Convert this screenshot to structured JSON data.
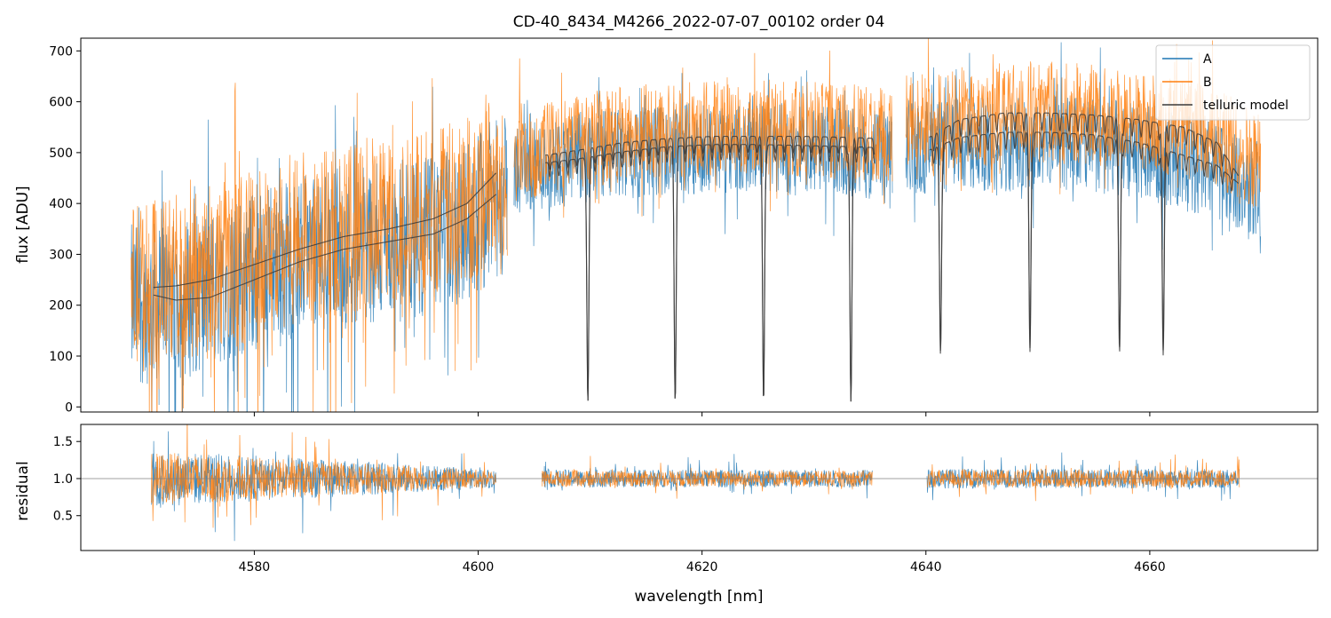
{
  "colors": {
    "series_a": "#1f77b4",
    "series_b": "#ff7f0e",
    "telluric": "#3a3a3a",
    "reference_line": "#808080",
    "axes": "#000000",
    "legend_border": "#cccccc"
  },
  "chart_data": [
    {
      "id": "flux-panel",
      "type": "line",
      "title": "CD-40_8434_M4266_2022-07-07_00102  order 04",
      "xlabel": "",
      "ylabel": "flux [ADU]",
      "xlim": [
        4564.5,
        4675
      ],
      "ylim": [
        -10,
        725
      ],
      "yticks": [
        0,
        100,
        200,
        300,
        400,
        500,
        600,
        700
      ],
      "xticks": [
        4580,
        4600,
        4620,
        4640,
        4660
      ],
      "show_xtick_labels": false,
      "grid": false,
      "legend": {
        "location": "top-right",
        "entries": [
          {
            "label": "A",
            "series": "series_a"
          },
          {
            "label": "B",
            "series": "series_b"
          },
          {
            "label": "telluric model",
            "series": "telluric"
          }
        ]
      },
      "series": [
        {
          "name": "A",
          "color_key": "series_a",
          "segments": [
            {
              "x_range": [
                4569.0,
                4602.6
              ],
              "x": [
                4569,
                4571,
                4574,
                4578,
                4582,
                4586,
                4590,
                4594,
                4598,
                4601.6
              ],
              "y": [
                200,
                205,
                215,
                250,
                285,
                305,
                320,
                330,
                350,
                410
              ],
              "noise": 160,
              "dip_depth": 200
            },
            {
              "x_range": [
                4603.2,
                4637.0
              ],
              "x": [
                4605,
                4609,
                4613,
                4617,
                4621,
                4625,
                4629,
                4633,
                4636.5
              ],
              "y": [
                470,
                490,
                500,
                505,
                510,
                510,
                505,
                500,
                495
              ],
              "noise": 90,
              "dip_depth": 60
            },
            {
              "x_range": [
                4638.2,
                4669.9
              ],
              "x": [
                4640,
                4645,
                4650,
                4655,
                4660,
                4665,
                4669.5
              ],
              "y": [
                510,
                515,
                520,
                515,
                500,
                470,
                430
              ],
              "noise": 95,
              "dip_depth": 60
            }
          ]
        },
        {
          "name": "B",
          "color_key": "series_b",
          "segments": [
            {
              "x_range": [
                4569.0,
                4602.6
              ],
              "x": [
                4569,
                4571,
                4574,
                4578,
                4582,
                4586,
                4590,
                4594,
                4598,
                4601.6
              ],
              "y": [
                230,
                240,
                255,
                285,
                320,
                345,
                360,
                370,
                395,
                450
              ],
              "noise": 170,
              "dip_depth": 210
            },
            {
              "x_range": [
                4603.2,
                4637.0
              ],
              "x": [
                4605,
                4609,
                4613,
                4617,
                4621,
                4625,
                4629,
                4633,
                4636.5
              ],
              "y": [
                500,
                525,
                535,
                545,
                545,
                550,
                545,
                540,
                535
              ],
              "noise": 95,
              "dip_depth": 60
            },
            {
              "x_range": [
                4638.2,
                4669.9
              ],
              "x": [
                4640,
                4645,
                4650,
                4655,
                4660,
                4665,
                4669.5
              ],
              "y": [
                560,
                575,
                580,
                575,
                560,
                535,
                490
              ],
              "noise": 100,
              "dip_depth": 60
            }
          ]
        },
        {
          "name": "telluric model",
          "color_key": "telluric",
          "style": "thin-line",
          "curves": [
            {
              "x": [
                4571,
                4573,
                4576,
                4580,
                4584,
                4588,
                4592,
                4596,
                4599,
                4601.6
              ],
              "y": [
                235,
                238,
                250,
                280,
                310,
                335,
                350,
                370,
                400,
                460
              ]
            },
            {
              "x": [
                4571,
                4573,
                4576,
                4580,
                4584,
                4588,
                4592,
                4596,
                4599,
                4601.6
              ],
              "y": [
                220,
                210,
                215,
                250,
                285,
                310,
                325,
                340,
                370,
                418
              ]
            },
            {
              "x": [
                4606,
                4609,
                4613,
                4617,
                4621,
                4625,
                4629,
                4633,
                4635.4
              ],
              "y": [
                495,
                505,
                520,
                528,
                532,
                532,
                532,
                530,
                528
              ],
              "lines": [
                4609.8,
                4617.6,
                4625.5,
                4633.3
              ],
              "line_depth": 0.98
            },
            {
              "x": [
                4606,
                4609,
                4613,
                4617,
                4621,
                4625,
                4629,
                4633,
                4635.4
              ],
              "y": [
                480,
                488,
                502,
                512,
                516,
                516,
                514,
                512,
                510
              ],
              "lines": [
                4609.8,
                4617.6,
                4625.5,
                4633.3
              ],
              "line_depth": 0.98
            },
            {
              "x": [
                4640.3,
                4643,
                4647,
                4651,
                4655,
                4659,
                4663,
                4666,
                4667.9
              ],
              "y": [
                530,
                565,
                578,
                578,
                574,
                565,
                550,
                520,
                455
              ],
              "lines": [
                4641.3,
                4649.3,
                4657.3,
                4661.2
              ],
              "line_depth": 0.8
            },
            {
              "x": [
                4640.3,
                4643,
                4647,
                4651,
                4655,
                4659,
                4663,
                4666,
                4667.9
              ],
              "y": [
                505,
                530,
                540,
                540,
                535,
                520,
                495,
                475,
                440
              ],
              "lines": [
                4641.3,
                4649.3,
                4657.3,
                4661.2
              ],
              "line_depth": 0.8
            }
          ]
        }
      ]
    },
    {
      "id": "residual-panel",
      "type": "line",
      "title": "",
      "xlabel": "wavelength [nm]",
      "ylabel": "residual",
      "xlim": [
        4564.5,
        4675
      ],
      "ylim": [
        0.03,
        1.73
      ],
      "yticks": [
        0.5,
        1.0,
        1.5
      ],
      "ytick_labels": [
        "0.5",
        "1.0",
        "1.5"
      ],
      "xticks": [
        4580,
        4600,
        4620,
        4640,
        4660
      ],
      "xtick_labels": [
        "4580",
        "4600",
        "4620",
        "4640",
        "4660"
      ],
      "grid": false,
      "reference_line": {
        "y": 1.0,
        "color_key": "reference_line"
      },
      "series": [
        {
          "name": "A",
          "color_key": "series_a",
          "segments": [
            {
              "x_range": [
                4570.8,
                4601.6
              ],
              "center": 1.0,
              "noise": 0.55,
              "x_noise_decay": [
                4570.8,
                0.65,
                4601.6,
                0.2
              ]
            },
            {
              "x_range": [
                4605.7,
                4635.2
              ],
              "center": 1.0,
              "noise": 0.2
            },
            {
              "x_range": [
                4640.1,
                4668.0
              ],
              "center": 1.0,
              "noise": 0.22
            }
          ]
        },
        {
          "name": "B",
          "color_key": "series_b",
          "segments": [
            {
              "x_range": [
                4570.8,
                4601.6
              ],
              "center": 1.0,
              "noise": 0.55,
              "x_noise_decay": [
                4570.8,
                0.6,
                4601.6,
                0.18
              ]
            },
            {
              "x_range": [
                4605.7,
                4635.2
              ],
              "center": 1.0,
              "noise": 0.18
            },
            {
              "x_range": [
                4640.1,
                4668.0
              ],
              "center": 1.0,
              "noise": 0.2
            }
          ]
        }
      ]
    }
  ]
}
